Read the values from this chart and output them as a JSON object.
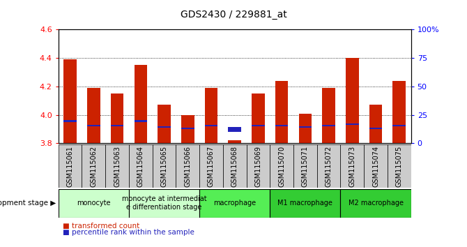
{
  "title": "GDS2430 / 229881_at",
  "samples": [
    "GSM115061",
    "GSM115062",
    "GSM115063",
    "GSM115064",
    "GSM115065",
    "GSM115066",
    "GSM115067",
    "GSM115068",
    "GSM115069",
    "GSM115070",
    "GSM115071",
    "GSM115072",
    "GSM115073",
    "GSM115074",
    "GSM115075"
  ],
  "transformed_count": [
    4.39,
    4.19,
    4.15,
    4.35,
    4.07,
    4.0,
    4.19,
    3.82,
    4.15,
    4.24,
    4.01,
    4.19,
    4.4,
    4.07,
    4.24
  ],
  "percentile_base": 3.8,
  "percentile_tops": [
    3.965,
    3.93,
    3.93,
    3.965,
    3.918,
    3.91,
    3.93,
    3.915,
    3.93,
    3.93,
    3.918,
    3.93,
    3.94,
    3.91,
    3.93
  ],
  "percentile_bottoms": [
    3.95,
    3.92,
    3.92,
    3.95,
    3.91,
    3.9,
    3.92,
    3.88,
    3.92,
    3.92,
    3.91,
    3.92,
    3.93,
    3.9,
    3.92
  ],
  "bar_color": "#cc2200",
  "percentile_color": "#2222bb",
  "ylim": [
    3.8,
    4.6
  ],
  "y2lim": [
    0,
    100
  ],
  "yticks": [
    3.8,
    4.0,
    4.2,
    4.4,
    4.6
  ],
  "y2ticks": [
    0,
    25,
    50,
    75,
    100
  ],
  "y2ticklabels": [
    "0",
    "25",
    "50",
    "75",
    "100%"
  ],
  "gridlines": [
    4.0,
    4.2,
    4.4
  ],
  "stage_groups": [
    {
      "label": "monocyte",
      "start": 0,
      "end": 3,
      "color": "#ccffcc"
    },
    {
      "label": "monocyte at intermediat\ne differentiation stage",
      "start": 3,
      "end": 6,
      "color": "#ccffcc"
    },
    {
      "label": "macrophage",
      "start": 6,
      "end": 9,
      "color": "#55ee55"
    },
    {
      "label": "M1 macrophage",
      "start": 9,
      "end": 12,
      "color": "#33cc33"
    },
    {
      "label": "M2 macrophage",
      "start": 12,
      "end": 15,
      "color": "#33cc33"
    }
  ],
  "dev_stage_label": "development stage",
  "legend_items": [
    {
      "color": "#cc2200",
      "label": "transformed count"
    },
    {
      "color": "#2222bb",
      "label": "percentile rank within the sample"
    }
  ],
  "bar_width": 0.55,
  "title_fontsize": 10,
  "ytick_fontsize": 8,
  "xtick_fontsize": 7,
  "stage_fontsize": 7
}
